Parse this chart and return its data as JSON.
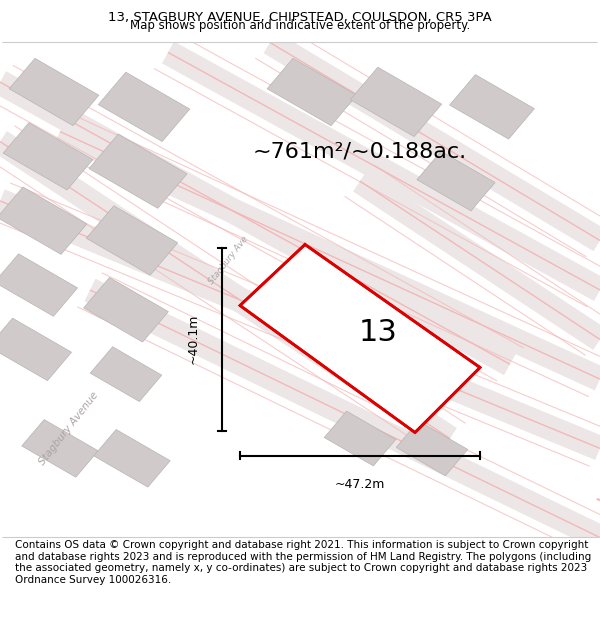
{
  "title_line1": "13, STAGBURY AVENUE, CHIPSTEAD, COULSDON, CR5 3PA",
  "title_line2": "Map shows position and indicative extent of the property.",
  "area_text": "~761m²/~0.188ac.",
  "number_label": "13",
  "dim_width": "~47.2m",
  "dim_height": "~40.1m",
  "footer_text": "Contains OS data © Crown copyright and database right 2021. This information is subject to Crown copyright and database rights 2023 and is reproduced with the permission of HM Land Registry. The polygons (including the associated geometry, namely x, y co-ordinates) are subject to Crown copyright and database rights 2023 Ordnance Survey 100026316.",
  "map_bg": "#f7f4f4",
  "road_color": "#f2b8b8",
  "road_fill_color": "#ede8e8",
  "building_color": "#d4cecе",
  "building_edge_color": "#c0b8b8",
  "plot_color": "#dd0000",
  "street_label_1": "Stagbury Avenue",
  "street_label_2": "Stagbury Ave",
  "title_fontsize": 9.5,
  "subtitle_fontsize": 8.5,
  "area_fontsize": 16,
  "number_fontsize": 22,
  "footer_fontsize": 7.5,
  "dim_fontsize": 9.0
}
